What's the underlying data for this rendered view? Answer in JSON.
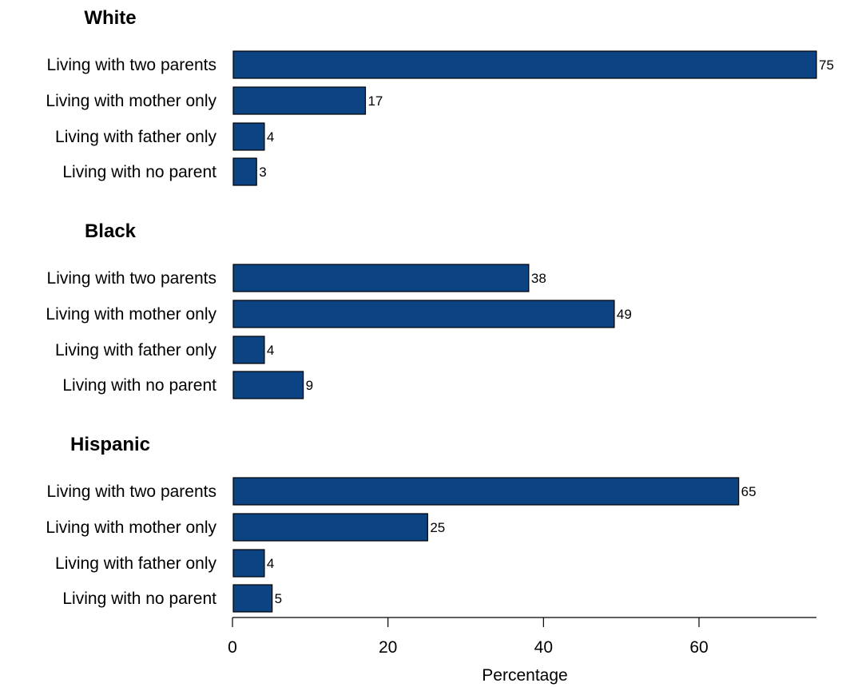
{
  "chart_data": {
    "type": "bar",
    "orientation": "horizontal",
    "xlabel": "Percentage",
    "xlim": [
      0,
      75
    ],
    "xticks": [
      0,
      20,
      40,
      60
    ],
    "grid": false,
    "bar_color": "#0b4383",
    "groups": [
      {
        "name": "White",
        "categories": [
          "Living with two parents",
          "Living with mother only",
          "Living with father only",
          "Living with no parent"
        ],
        "values": [
          75,
          17,
          4,
          3
        ]
      },
      {
        "name": "Black",
        "categories": [
          "Living with two parents",
          "Living with mother only",
          "Living with father only",
          "Living with no parent"
        ],
        "values": [
          38,
          49,
          4,
          9
        ]
      },
      {
        "name": "Hispanic",
        "categories": [
          "Living with two parents",
          "Living with mother only",
          "Living with father only",
          "Living with no parent"
        ],
        "values": [
          65,
          25,
          4,
          5
        ]
      }
    ]
  }
}
